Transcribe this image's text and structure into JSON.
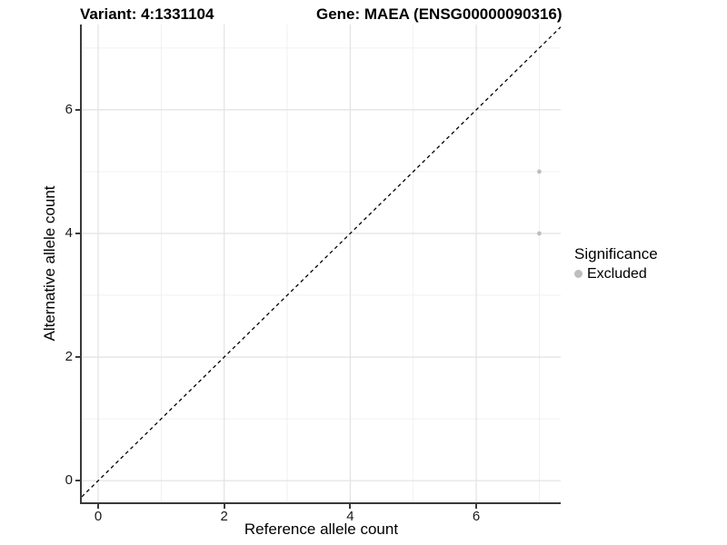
{
  "chart_data": {
    "type": "scatter",
    "title_left": "Variant: 4:1331104",
    "title_right": "Gene: MAEA (ENSG00000090316)",
    "xlabel": "Reference allele count",
    "ylabel": "Alternative allele count",
    "xlim": [
      -0.26,
      7.34
    ],
    "ylim": [
      -0.35,
      7.38
    ],
    "x_major_ticks": [
      0,
      2,
      4,
      6
    ],
    "x_tick_labels": [
      "0",
      "2",
      "4",
      "6"
    ],
    "x_minor_ticks": [
      1,
      3,
      5,
      7
    ],
    "y_major_ticks": [
      0,
      2,
      4,
      6
    ],
    "y_tick_labels": [
      "0",
      "2",
      "4",
      "6"
    ],
    "y_minor_ticks": [
      1,
      3,
      5,
      7
    ],
    "grid": true,
    "legend": {
      "title": "Significance",
      "position": "right",
      "items": [
        {
          "label": "Excluded",
          "color": "#bebebe"
        }
      ]
    },
    "series": [
      {
        "name": "Excluded",
        "color": "#bebebe",
        "points": [
          {
            "x": 7,
            "y": 5
          },
          {
            "x": 7,
            "y": 4
          }
        ]
      }
    ],
    "reference_line": {
      "type": "identity",
      "equation": "y = x",
      "style": "dashed",
      "color": "#000000"
    }
  },
  "colors": {
    "background": "#ffffff",
    "grid_major": "#e2e2e2",
    "grid_minor": "#f0f0f0",
    "axis_line": "#3a3a3a",
    "tick_text": "#1a1a1a",
    "point": "#bebebe"
  }
}
